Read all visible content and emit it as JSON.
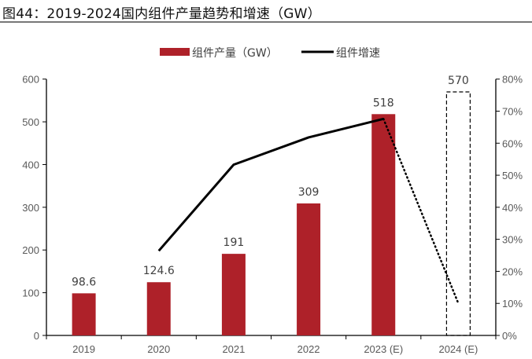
{
  "title": "图44：2019-2024国内组件产量趋势和增速（GW）",
  "chart_data": {
    "type": "bar+line",
    "title": "图44：2019-2024国内组件产量趋势和增速（GW）",
    "categories": [
      "2019",
      "2020",
      "2021",
      "2022",
      "2023 (E)",
      "2024 (E)"
    ],
    "series": [
      {
        "name": "组件产量（GW）",
        "type": "bar",
        "axis": "left",
        "color": "#AE2129",
        "values": [
          98.6,
          124.6,
          191,
          309,
          518,
          570
        ],
        "labels": [
          "98.6",
          "124.6",
          "191",
          "309",
          "518",
          "570"
        ],
        "forecast_style": "dashed-outline for 2024 (E)"
      },
      {
        "name": "组件增速",
        "type": "line",
        "axis": "right",
        "color": "#000000",
        "unit": "%",
        "values": [
          null,
          26.4,
          53.3,
          61.8,
          67.6,
          10.0
        ],
        "forecast_style": "dotted from 2023 (E) to 2024 (E)"
      }
    ],
    "y_left": {
      "lim": [
        0,
        600
      ],
      "ticks": [
        "0",
        "100",
        "200",
        "300",
        "400",
        "500",
        "600"
      ]
    },
    "y_right": {
      "lim": [
        0,
        80
      ],
      "ticks": [
        "0%",
        "10%",
        "20%",
        "30%",
        "40%",
        "50%",
        "60%",
        "70%",
        "80%"
      ]
    },
    "grid": false,
    "legend": "top-center"
  }
}
